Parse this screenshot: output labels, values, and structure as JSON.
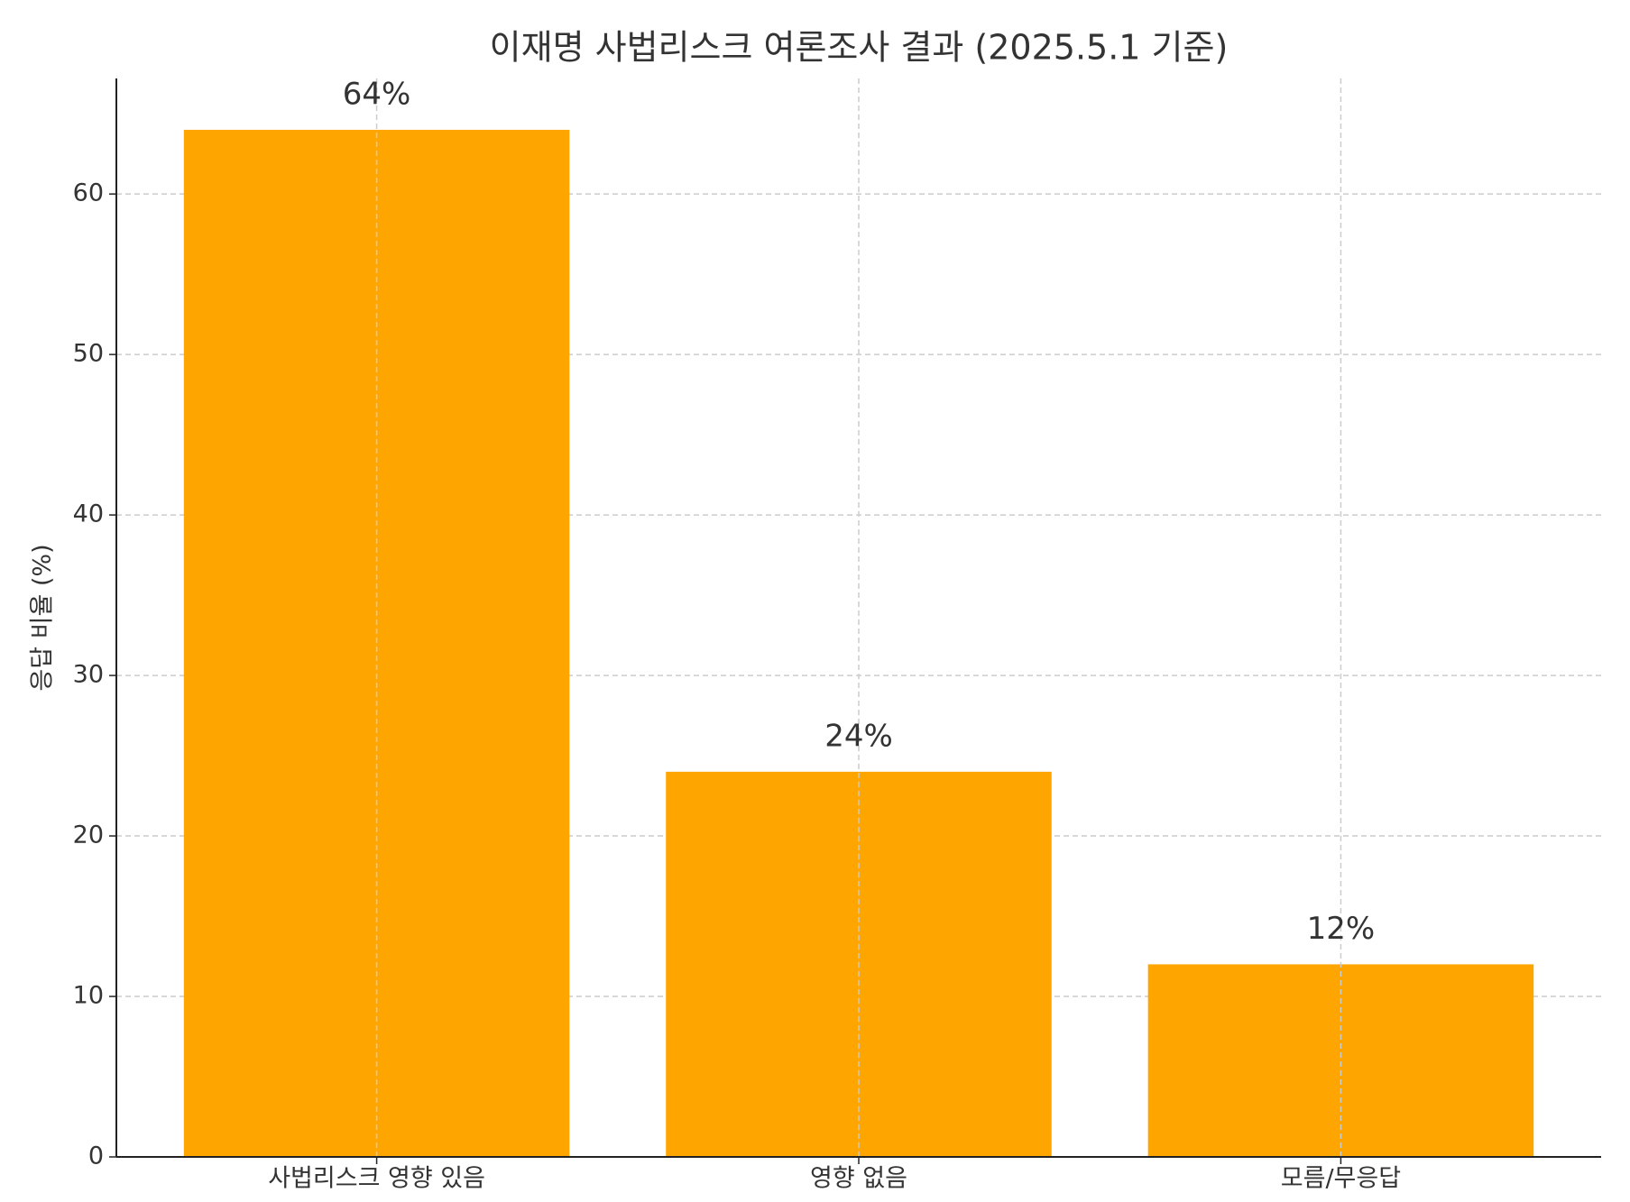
{
  "chart_data": {
    "type": "bar",
    "title": "이재명 사법리스크 여론조사 결과 (2025.5.1 기준)",
    "y_label": "응답 비율 (%)",
    "categories": [
      "사법리스크 영향 있음",
      "영향 없음",
      "모름/무응답"
    ],
    "values": [
      64,
      24,
      12
    ],
    "value_labels": [
      "64%",
      "24%",
      "12%"
    ],
    "color": "#ffa500",
    "ylim": [
      0,
      67.2
    ],
    "yticks": [
      0,
      10,
      20,
      30,
      40,
      50,
      60
    ],
    "grid": true
  }
}
